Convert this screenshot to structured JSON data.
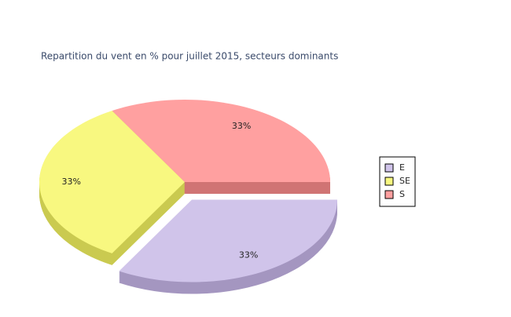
{
  "chart_data": {
    "type": "pie",
    "title": "Repartition du vent en % pour juillet 2015, secteurs dominants",
    "categories": [
      "E",
      "SE",
      "S"
    ],
    "values": [
      33,
      33,
      33
    ],
    "value_labels": [
      "33%",
      "33%",
      "33%"
    ],
    "colors": [
      "#d0c4ea",
      "#f8f880",
      "#ffa0a0"
    ],
    "side_colors": [
      "#a496c0",
      "#caca50",
      "#d07474"
    ],
    "legend": "right"
  }
}
